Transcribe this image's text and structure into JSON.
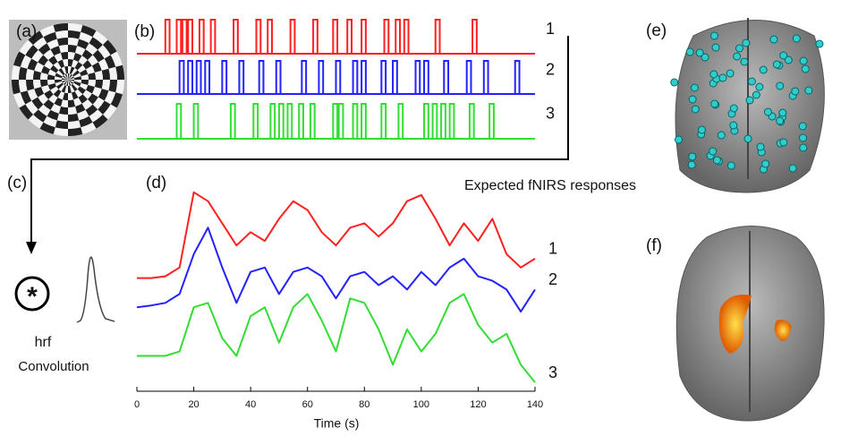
{
  "panels": {
    "a": "(a)",
    "b": "(b)",
    "c": "(c)",
    "d": "(d)",
    "e": "(e)",
    "f": "(f)"
  },
  "stimuli": {
    "duration": 1.5,
    "trains": [
      {
        "label": "1",
        "color": "#ff2020",
        "onsets": [
          10,
          14,
          16,
          18,
          22,
          26,
          34,
          42,
          46,
          54,
          62,
          69,
          74,
          79,
          87,
          91,
          94,
          105,
          118
        ]
      },
      {
        "label": "2",
        "color": "#2222ff",
        "onsets": [
          15,
          18,
          21,
          24,
          30,
          36,
          43,
          49,
          58,
          64,
          70,
          76,
          79,
          86,
          90,
          98,
          101,
          108,
          116,
          122,
          133
        ]
      },
      {
        "label": "3",
        "color": "#33dd33",
        "onsets": [
          14,
          20,
          33,
          41,
          47,
          50,
          53,
          57,
          61,
          69,
          71,
          76,
          79,
          86,
          92,
          101,
          104,
          107,
          110,
          117,
          124
        ]
      }
    ]
  },
  "hrf": {
    "label": "hrf",
    "caption": "Convolution"
  },
  "chart_data": {
    "type": "line",
    "title": "Expected fNIRS responses",
    "x_label": "Time (s)",
    "x": [
      0,
      5,
      10,
      15,
      20,
      25,
      30,
      35,
      40,
      45,
      50,
      55,
      60,
      65,
      70,
      75,
      80,
      85,
      90,
      95,
      100,
      105,
      110,
      115,
      120,
      125,
      130,
      135,
      140
    ],
    "xlim": [
      0,
      140
    ],
    "xticks": [
      0,
      20,
      40,
      60,
      80,
      100,
      120,
      140
    ],
    "ylim": [
      0,
      240
    ],
    "series": [
      {
        "name": "1",
        "color": "#ff2020",
        "values": [
          128,
          128,
          130,
          140,
          225,
          215,
          190,
          165,
          180,
          170,
          195,
          215,
          205,
          180,
          165,
          185,
          190,
          175,
          190,
          215,
          222,
          195,
          165,
          190,
          170,
          195,
          155,
          140,
          150
        ]
      },
      {
        "name": "2",
        "color": "#2222ff",
        "values": [
          95,
          97,
          100,
          110,
          155,
          185,
          140,
          100,
          135,
          140,
          110,
          135,
          140,
          130,
          105,
          130,
          135,
          120,
          130,
          115,
          135,
          120,
          140,
          150,
          130,
          125,
          115,
          90,
          115
        ]
      },
      {
        "name": "3",
        "color": "#33dd33",
        "values": [
          40,
          40,
          40,
          45,
          95,
          100,
          60,
          40,
          85,
          95,
          55,
          95,
          110,
          80,
          45,
          105,
          100,
          70,
          30,
          70,
          45,
          65,
          100,
          110,
          75,
          55,
          65,
          30,
          10
        ]
      }
    ]
  }
}
